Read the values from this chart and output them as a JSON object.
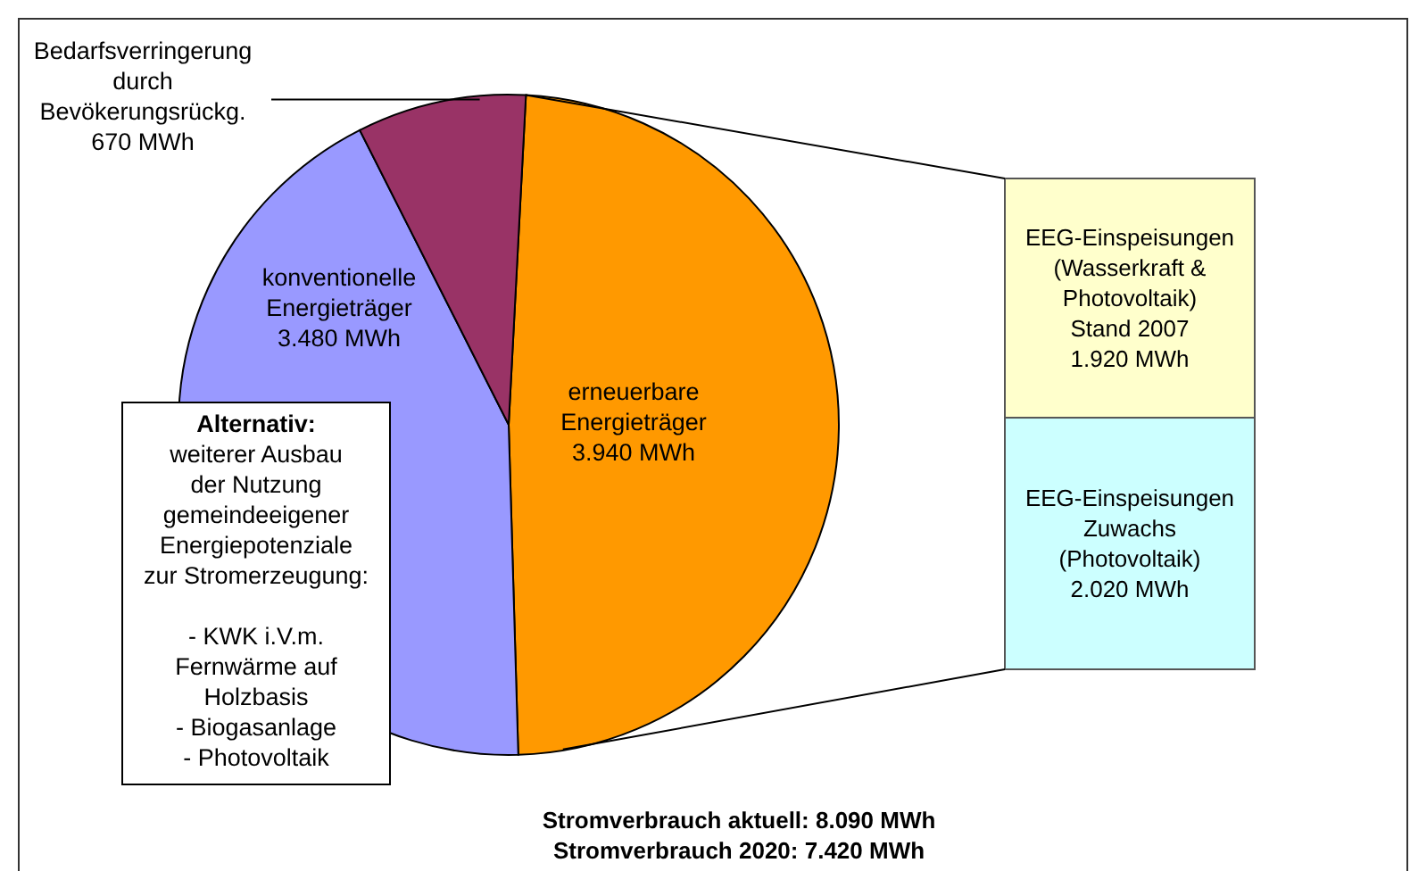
{
  "chart_data": [
    {
      "type": "pie",
      "categories": [
        "erneuerbare\nEnergieträger",
        "konventionelle\nEnergieträger",
        "Bedarfsverringerung\ndurch\nBevökerungsrückg."
      ],
      "values": [
        3940,
        3480,
        670
      ],
      "colors": [
        "#ff9900",
        "#9999ff",
        "#993366"
      ],
      "value_labels": [
        "3.940 MWh",
        "3.480 MWh",
        "670 MWh"
      ],
      "annotations": [
        "Alternativ:\nweiterer Ausbau\nder Nutzung\ngemeindeeigener\nEnergiepotenziale\nzur Stromerzeugung:\n\n- KWK i.V.m.\nFernwärme auf\nHolzbasis\n- Biogasanlage\n- Photovoltaik",
        "Stromverbrauch aktuell: 8.090 MWh",
        "Stromverbrauch 2020: 7.420 MWh"
      ]
    },
    {
      "type": "bar",
      "stacked": true,
      "categories": [
        null
      ],
      "series": [
        {
          "name": "EEG-Einspeisungen\nZuwachs\n(Photovoltaik)",
          "color": "#ccffff",
          "values": [
            2020
          ],
          "value_labels": [
            "2.020 MWh"
          ]
        },
        {
          "name": "EEG-Einspeisungen\n(Wasserkraft &\nPhotovoltaik)\nStand 2007",
          "color": "#ffffcc",
          "values": [
            1920
          ],
          "value_labels": [
            "1.920 MWh"
          ]
        }
      ]
    }
  ]
}
